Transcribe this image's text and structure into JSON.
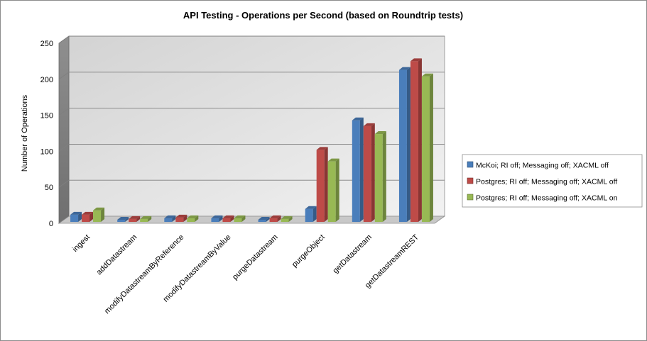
{
  "chart_data": {
    "type": "bar",
    "title": "API Testing - Operations per Second (based on Roundtrip tests)",
    "xlabel": "",
    "ylabel": "Number of Operations",
    "ylim": [
      0,
      250
    ],
    "yticks": [
      0,
      50,
      100,
      150,
      200,
      250
    ],
    "grid": true,
    "legend_position": "right",
    "three_d": true,
    "categories": [
      "ingest",
      "addDatastream",
      "modifyDatastreamByReference",
      "modifyDatastreamByValue",
      "purgeDatastream",
      "purgeObject",
      "getDatastream",
      "getDatastreamREST"
    ],
    "series": [
      {
        "name": "McKoi; RI off; Messaging off; XACML off",
        "color": "#4a7ebb",
        "values": [
          10,
          3,
          5,
          5,
          3,
          18,
          141,
          211
        ]
      },
      {
        "name": "Postgres; RI off; Messaging  off; XACML off",
        "color": "#be4b48",
        "values": [
          10,
          4,
          6,
          5,
          5,
          100,
          133,
          223
        ]
      },
      {
        "name": "Postgres; RI off; Messaging  off; XACML on",
        "color": "#98b954",
        "values": [
          16,
          4,
          5,
          5,
          4,
          84,
          122,
          202
        ]
      }
    ]
  }
}
